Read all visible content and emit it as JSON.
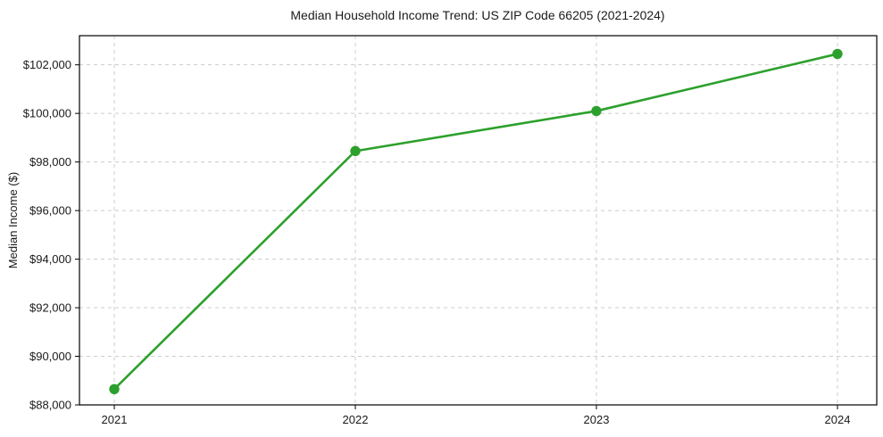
{
  "chart_data": {
    "type": "line",
    "title": "Median Household Income Trend: US ZIP Code 66205 (2021-2024)",
    "xlabel": "",
    "ylabel": "Median Income ($)",
    "x": [
      2021,
      2022,
      2023,
      2024
    ],
    "x_tick_labels": [
      "2021",
      "2022",
      "2023",
      "2024"
    ],
    "values": [
      88650,
      98450,
      100100,
      102450
    ],
    "y_ticks": [
      {
        "value": 88000,
        "label": "$88,000"
      },
      {
        "value": 90000,
        "label": "$90,000"
      },
      {
        "value": 92000,
        "label": "$92,000"
      },
      {
        "value": 94000,
        "label": "$94,000"
      },
      {
        "value": 96000,
        "label": "$96,000"
      },
      {
        "value": 98000,
        "label": "$98,000"
      },
      {
        "value": 100000,
        "label": "$100,000"
      },
      {
        "value": 102000,
        "label": "$102,000"
      }
    ],
    "ylim": [
      88000,
      103200
    ],
    "grid": {
      "visible": true,
      "style": "dashed"
    },
    "legend": "none",
    "colors": {
      "line": "#2ca02c",
      "marker": "#2ca02c",
      "grid": "#cccccc",
      "axis": "#000000",
      "text": "#1a1a1a",
      "background": "#ffffff"
    },
    "marker_shape": "circle"
  }
}
